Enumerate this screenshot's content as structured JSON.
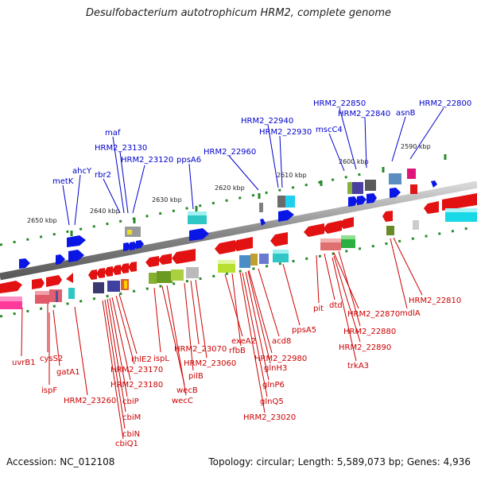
{
  "title": "Desulfobacterium autotrophicum HRM2, complete genome",
  "accession": "Accession: NC_012108",
  "topology": "Topology: circular; Length: 5,589,073 bp; Genes: 4,936",
  "colors": {
    "label_forward": "#0000cc",
    "label_reverse": "#cc0000",
    "tick": "#2a8a2a"
  },
  "scale_labels": [
    "2650 kbp",
    "2640 kbp",
    "2630 kbp",
    "2620 kbp",
    "2610 kbp",
    "2600 kbp",
    "2590 kbp"
  ],
  "top_labels": [
    "metK",
    "ahcY",
    "rbr2",
    "maf",
    "HRM2_23130",
    "HRM2_23120",
    "ppsA6",
    "HRM2_22960",
    "HRM2_22940",
    "HRM2_22930",
    "mscC4",
    "HRM2_22850",
    "HRM2_22840",
    "asnB",
    "HRM2_22800"
  ],
  "bottom_labels": [
    "uvrB1",
    "cysS2",
    "gatA1",
    "ispF",
    "HRM2_23260",
    "rhlE2",
    "HRM2_23170",
    "HRM2_23180",
    "cbiP",
    "cbiM",
    "cbiN",
    "cbiQ1",
    "ispL",
    "wecB",
    "wecC",
    "HRM2_23070",
    "HRM2_23060",
    "pilB",
    "exeA2",
    "rfbB",
    "acd8",
    "HRM2_22980",
    "glnH3",
    "glnP6",
    "glnQ5",
    "HRM2_23020",
    "ppsA5",
    "pit",
    "dtd",
    "HRM2_22870",
    "HRM2_22880",
    "HRM2_22890",
    "trkA3",
    "HRM2_22810",
    "mdlA"
  ]
}
